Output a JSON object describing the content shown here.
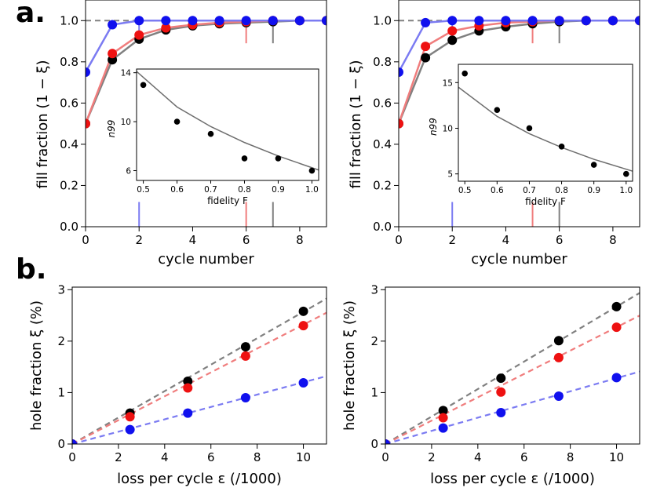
{
  "panel_labels": [
    "a.",
    "b."
  ],
  "colors": {
    "blue": "#1010ee",
    "red": "#ee1111",
    "black": "#000000",
    "grey": "#6e6e6e",
    "blue_line": "#7b7bf2",
    "red_line": "#f07d7d",
    "grey_line": "#808080"
  },
  "chart_data": [
    {
      "type": "line",
      "panel": "a. left",
      "xlabel": "cycle number",
      "ylabel": "fill fraction (1 − ξ)",
      "xlim": [
        0,
        9
      ],
      "ylim": [
        0,
        1.1
      ],
      "xticks": [
        "0",
        "2",
        "4",
        "6",
        "8"
      ],
      "yticks": [
        "0.0",
        "0.2",
        "0.4",
        "0.6",
        "0.8",
        "1.0"
      ],
      "reference_line": 1.0,
      "x": [
        0,
        1,
        2,
        3,
        4,
        5,
        6,
        7,
        8,
        9
      ],
      "series": [
        {
          "name": "blue",
          "values": [
            0.75,
            0.98,
            1.0,
            1.0,
            1.0,
            1.0,
            1.0,
            1.0,
            1.0,
            1.0
          ],
          "n99": 2
        },
        {
          "name": "red",
          "values": [
            0.5,
            0.84,
            0.93,
            0.965,
            0.98,
            0.99,
            0.995,
            1.0,
            1.0,
            1.0
          ],
          "n99": 6
        },
        {
          "name": "black",
          "values": [
            0.5,
            0.81,
            0.91,
            0.955,
            0.975,
            0.985,
            0.99,
            0.995,
            1.0,
            1.0
          ],
          "n99": 7
        }
      ],
      "inset": {
        "type": "scatter",
        "xlabel": "fidelity F",
        "ylabel": "n99",
        "xlim": [
          0.48,
          1.02
        ],
        "ylim": [
          5.2,
          14.3
        ],
        "xticks": [
          "0.5",
          "0.6",
          "0.7",
          "0.8",
          "0.9",
          "1.0"
        ],
        "yticks": [
          "6",
          "10",
          "14"
        ],
        "x": [
          0.5,
          0.6,
          0.7,
          0.8,
          0.9,
          1.0
        ],
        "values": [
          13,
          10,
          9,
          7,
          7,
          6
        ],
        "fit_x": [
          0.48,
          0.6,
          0.7,
          0.8,
          0.9,
          1.02
        ],
        "fit": [
          14.1,
          11.2,
          9.6,
          8.3,
          7.2,
          6.05
        ]
      }
    },
    {
      "type": "line",
      "panel": "a. right",
      "xlabel": "cycle number",
      "ylabel": "fill fraction (1 − ξ)",
      "xlim": [
        0,
        9
      ],
      "ylim": [
        0,
        1.1
      ],
      "xticks": [
        "0",
        "2",
        "4",
        "6",
        "8"
      ],
      "yticks": [
        "0.0",
        "0.2",
        "0.4",
        "0.6",
        "0.8",
        "1.0"
      ],
      "reference_line": 1.0,
      "x": [
        0,
        1,
        2,
        3,
        4,
        5,
        6,
        7,
        8,
        9
      ],
      "series": [
        {
          "name": "blue",
          "values": [
            0.75,
            0.99,
            1.0,
            1.0,
            1.0,
            1.0,
            1.0,
            1.0,
            1.0,
            1.0
          ],
          "n99": 2
        },
        {
          "name": "red",
          "values": [
            0.5,
            0.875,
            0.95,
            0.975,
            0.99,
            0.995,
            1.0,
            1.0,
            1.0,
            1.0
          ],
          "n99": 5
        },
        {
          "name": "black",
          "values": [
            0.5,
            0.82,
            0.905,
            0.95,
            0.97,
            0.985,
            0.995,
            1.0,
            1.0,
            1.0
          ],
          "n99": 6
        }
      ],
      "inset": {
        "type": "scatter",
        "xlabel": "fidelity F",
        "ylabel": "n99",
        "xlim": [
          0.48,
          1.02
        ],
        "ylim": [
          4.2,
          17.0
        ],
        "xticks": [
          "0.5",
          "0.6",
          "0.7",
          "0.8",
          "0.9",
          "1.0"
        ],
        "yticks": [
          "5",
          "10",
          "15"
        ],
        "x": [
          0.5,
          0.6,
          0.7,
          0.8,
          0.9,
          1.0
        ],
        "values": [
          16,
          12,
          10,
          8,
          6,
          5
        ],
        "fit_x": [
          0.48,
          0.6,
          0.7,
          0.8,
          0.9,
          1.02
        ],
        "fit": [
          14.5,
          11.3,
          9.4,
          7.9,
          6.6,
          5.3
        ]
      }
    },
    {
      "type": "scatter",
      "panel": "b. left",
      "xlabel": "loss per cycle ε (/1000)",
      "ylabel": "hole fraction ξ (%)",
      "xlim": [
        0,
        11
      ],
      "ylim": [
        0,
        3.05
      ],
      "xticks": [
        "0",
        "2",
        "4",
        "6",
        "8",
        "10"
      ],
      "yticks": [
        "0",
        "1",
        "2",
        "3"
      ],
      "x": [
        0,
        2.5,
        5,
        7.5,
        10
      ],
      "series": [
        {
          "name": "black",
          "values": [
            0,
            0.6,
            1.22,
            1.89,
            2.58
          ],
          "slope": 0.257
        },
        {
          "name": "red",
          "values": [
            0,
            0.53,
            1.09,
            1.71,
            2.3
          ],
          "slope": 0.232
        },
        {
          "name": "blue",
          "values": [
            0,
            0.28,
            0.6,
            0.9,
            1.19
          ],
          "slope": 0.12
        }
      ]
    },
    {
      "type": "scatter",
      "panel": "b. right",
      "xlabel": "loss per cycle ε (/1000)",
      "ylabel": "hole fraction ξ (%)",
      "xlim": [
        0,
        11
      ],
      "ylim": [
        0,
        3.05
      ],
      "xticks": [
        "0",
        "2",
        "4",
        "6",
        "8",
        "10"
      ],
      "yticks": [
        "0",
        "1",
        "2",
        "3"
      ],
      "x": [
        0,
        2.5,
        5,
        7.5,
        10
      ],
      "series": [
        {
          "name": "black",
          "values": [
            0,
            0.65,
            1.28,
            2.01,
            2.67
          ],
          "slope": 0.267
        },
        {
          "name": "red",
          "values": [
            0,
            0.51,
            1.01,
            1.68,
            2.27
          ],
          "slope": 0.227
        },
        {
          "name": "blue",
          "values": [
            0,
            0.31,
            0.61,
            0.93,
            1.29
          ],
          "slope": 0.128
        }
      ]
    }
  ]
}
